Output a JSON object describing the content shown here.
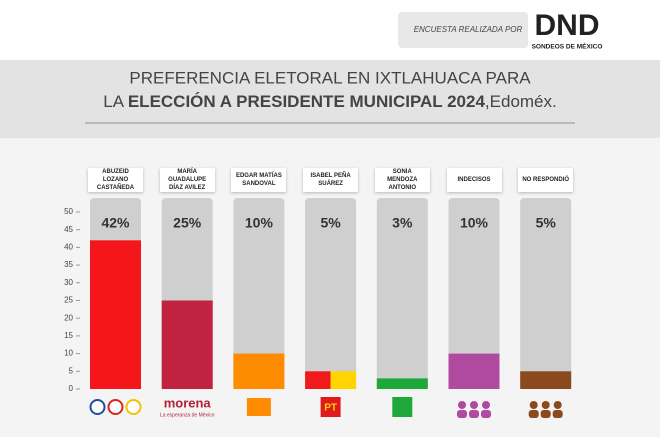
{
  "header": {
    "credit": "ENCUESTA REALIZADA POR",
    "logo": "DND",
    "logo_sub": "SONDEOS DE MÉXICO"
  },
  "chart_data": {
    "type": "bar",
    "title_line1": "PREFERENCIA ELETORAL EN IXTLAHUACA PARA",
    "title_line2": [
      "LA ",
      "ELECCIÓN A PRESIDENTE MUNICIPAL 2024",
      ",Edoméx."
    ],
    "categories": [
      "ABUZEID LOZANO CASTAÑEDA",
      "MARÍA GUADALUPE DÍAZ AVILEZ",
      "EDGAR MATÍAS SANDOVAL",
      "ISABEL PEÑA SUÁREZ",
      "SONIA MENDOZA ANTONIO",
      "INDECISOS",
      "NO RESPONDIÓ"
    ],
    "values": [
      42,
      25,
      10,
      5,
      3,
      10,
      5
    ],
    "value_labels": [
      "42%",
      "25%",
      "10%",
      "5%",
      "3%",
      "10%",
      "5%"
    ],
    "colors": [
      "#f5161b",
      "#c0223f",
      "#ff8c00",
      [
        "#f01a1a",
        "#ffd400"
      ],
      "#1fa83a",
      "#b04aa0",
      "#8b4a1e"
    ],
    "ylim": [
      0,
      50
    ],
    "yticks": [
      0,
      5,
      10,
      15,
      20,
      25,
      30,
      35,
      40,
      45,
      50
    ],
    "logos": {
      "morena": "morena",
      "morena_sub": "La esperanza de México",
      "pt": "PT"
    }
  }
}
